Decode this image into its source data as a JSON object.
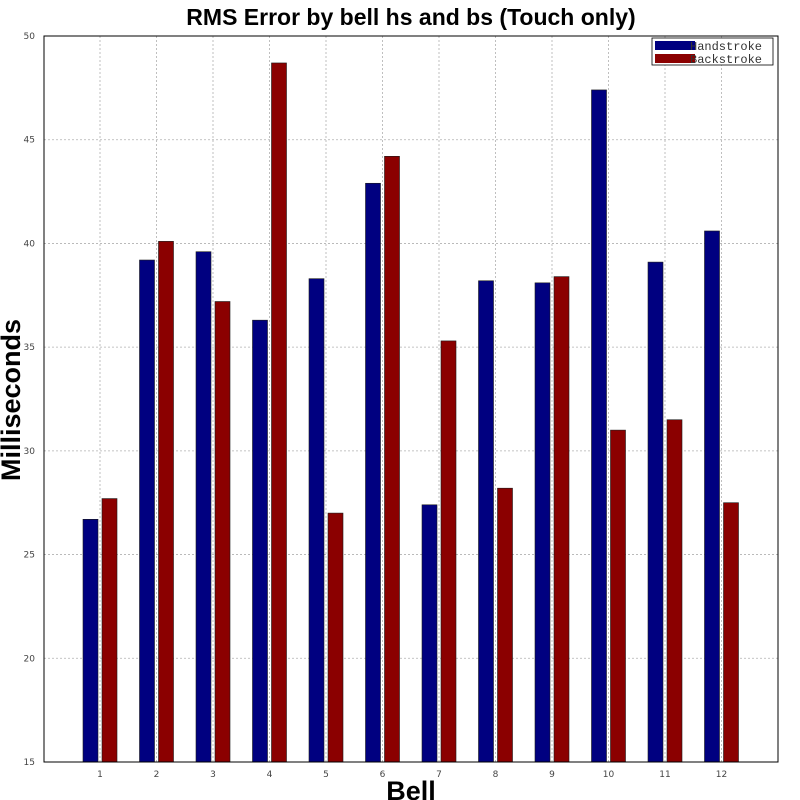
{
  "chart_data": {
    "type": "bar",
    "title": "RMS Error by bell hs and bs (Touch only)",
    "xlabel": "Bell",
    "ylabel": "Milliseconds",
    "categories": [
      "1",
      "2",
      "3",
      "4",
      "5",
      "6",
      "7",
      "8",
      "9",
      "10",
      "11",
      "12"
    ],
    "ylim": [
      15,
      50
    ],
    "yticks": [
      15,
      20,
      25,
      30,
      35,
      40,
      45,
      50
    ],
    "grid": true,
    "legend_position": "top-right",
    "series": [
      {
        "name": "Handstroke",
        "color": "#000080",
        "values": [
          26.7,
          39.2,
          39.6,
          36.3,
          38.3,
          42.9,
          27.4,
          38.2,
          38.1,
          47.4,
          39.1,
          40.6
        ]
      },
      {
        "name": "Backstroke",
        "color": "#8b0000",
        "values": [
          27.7,
          40.1,
          37.2,
          48.7,
          27.0,
          44.2,
          35.3,
          28.2,
          38.4,
          31.0,
          31.5,
          27.5
        ]
      }
    ]
  }
}
